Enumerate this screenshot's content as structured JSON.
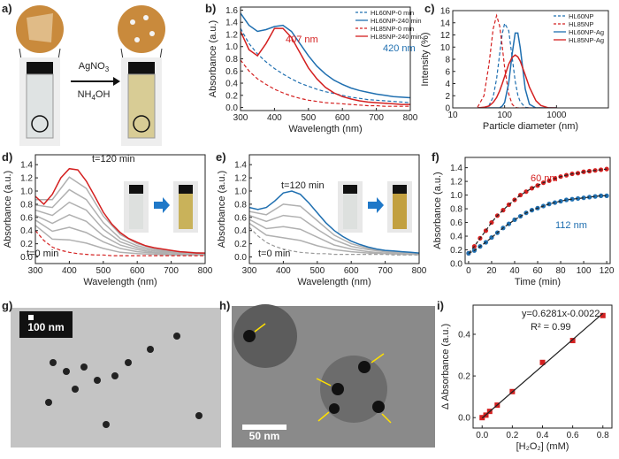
{
  "panel_labels": [
    "a)",
    "b)",
    "c)",
    "d)",
    "e)",
    "f)",
    "g)",
    "h)",
    "i)"
  ],
  "panel_a": {
    "reagents": [
      {
        "text": "AgNO",
        "sub": "3"
      },
      {
        "text": "NH",
        "sub": "4",
        "tail": "OH"
      }
    ]
  },
  "panel_g": {
    "scale_bar": "100 nm"
  },
  "panel_h": {
    "scale_bar": "50 nm"
  },
  "chart_data": [
    {
      "type": "line",
      "ylabel": "Absorbance (a.u.)",
      "xlabel": "Wavelength (nm)",
      "xlim": [
        300,
        800
      ],
      "ylim": [
        -0.05,
        1.65
      ],
      "xticks": [
        300,
        400,
        500,
        600,
        700,
        800
      ],
      "yticks": [
        {
          "value": 0,
          "label": "0.0"
        },
        0.2,
        0.4,
        0.6,
        0.8,
        {
          "value": 1,
          "label": "1.0"
        },
        1.2,
        1.4,
        1.6
      ],
      "legend": "upper right",
      "x": [
        300,
        325,
        350,
        375,
        400,
        425,
        450,
        475,
        500,
        525,
        550,
        575,
        600,
        625,
        650,
        675,
        700,
        725,
        750,
        775,
        800
      ],
      "series": [
        {
          "name": "HL60NP-0 min",
          "color": "#1f6fb0",
          "style": "dashed",
          "values": [
            1.3,
            1.05,
            0.88,
            0.75,
            0.64,
            0.55,
            0.47,
            0.4,
            0.35,
            0.3,
            0.26,
            0.23,
            0.2,
            0.17,
            0.15,
            0.13,
            0.12,
            0.11,
            0.1,
            0.09,
            0.08
          ]
        },
        {
          "name": "HL60NP-240 min",
          "color": "#1f6fb0",
          "style": "solid",
          "values": [
            1.55,
            1.35,
            1.25,
            1.28,
            1.33,
            1.35,
            1.25,
            1.05,
            0.85,
            0.68,
            0.55,
            0.45,
            0.38,
            0.32,
            0.28,
            0.25,
            0.22,
            0.2,
            0.18,
            0.17,
            0.16
          ]
        },
        {
          "name": "HL85NP-0 min",
          "color": "#d42020",
          "style": "dashed",
          "values": [
            0.78,
            0.6,
            0.47,
            0.38,
            0.3,
            0.24,
            0.19,
            0.15,
            0.12,
            0.1,
            0.08,
            0.07,
            0.06,
            0.05,
            0.04,
            0.03,
            0.03,
            0.02,
            0.02,
            0.02,
            0.02
          ]
        },
        {
          "name": "HL85NP-240 min",
          "color": "#d42020",
          "style": "solid",
          "values": [
            1.25,
            0.95,
            0.85,
            1.05,
            1.3,
            1.3,
            1.15,
            0.9,
            0.65,
            0.47,
            0.33,
            0.24,
            0.18,
            0.14,
            0.11,
            0.09,
            0.08,
            0.07,
            0.06,
            0.05,
            0.05
          ]
        }
      ],
      "annotations": [
        {
          "text": "407 nm",
          "color": "#d42020"
        },
        {
          "text": "420 nm",
          "color": "#1f6fb0"
        }
      ]
    },
    {
      "type": "line",
      "ylabel": "Intensity (%)",
      "xlabel": "Particle diameter (nm)",
      "xscale": "log",
      "xlim": [
        10,
        10000
      ],
      "ylim": [
        0,
        16
      ],
      "xticks": [
        10,
        100,
        1000
      ],
      "yticks": [
        0,
        2,
        4,
        6,
        8,
        10,
        12,
        14,
        16
      ],
      "legend": "upper right",
      "x": [
        30,
        40,
        50,
        60,
        70,
        80,
        90,
        100,
        120,
        140,
        160,
        180,
        200,
        250,
        300,
        400,
        500,
        700,
        1000
      ],
      "series": [
        {
          "name": "HL60NP",
          "color": "#1f6fb0",
          "style": "dashed",
          "values": [
            0,
            0,
            0.4,
            1.8,
            4.8,
            8.8,
            12.2,
            13.9,
            12.7,
            8.3,
            4.4,
            2.1,
            1.0,
            0.1,
            0,
            0,
            0,
            0,
            0
          ]
        },
        {
          "name": "HL85NP",
          "color": "#d42020",
          "style": "dashed",
          "values": [
            0.1,
            2.0,
            7.2,
            13.0,
            15.2,
            13.5,
            10.1,
            6.6,
            2.3,
            0.6,
            0.1,
            0,
            0,
            0,
            0,
            0,
            0,
            0,
            0
          ]
        },
        {
          "name": "HL60NP-Ag",
          "color": "#1f6fb0",
          "style": "solid",
          "values": [
            0,
            0,
            0,
            0,
            0,
            0,
            0.3,
            0.9,
            4.1,
            8.9,
            12.3,
            12.3,
            9.9,
            3.1,
            0.6,
            0,
            0,
            0,
            0
          ]
        },
        {
          "name": "HL85NP-Ag",
          "color": "#d42020",
          "style": "solid",
          "values": [
            0,
            0.1,
            0.3,
            0.9,
            1.7,
            2.8,
            4.0,
            5.2,
            7.2,
            8.3,
            8.7,
            8.4,
            7.7,
            5.4,
            3.4,
            1.2,
            0.4,
            0,
            0
          ]
        }
      ]
    },
    {
      "type": "line",
      "ylabel": "Absorbance (a.u.)",
      "xlabel": "Wavelength (nm)",
      "xlim": [
        300,
        800
      ],
      "ylim": [
        -0.1,
        1.55
      ],
      "xticks": [
        300,
        400,
        500,
        600,
        700,
        800
      ],
      "yticks": [
        {
          "value": 0,
          "label": "0.0"
        },
        0.2,
        0.4,
        0.6,
        0.8,
        {
          "value": 1,
          "label": "1.0"
        },
        1.2,
        1.4
      ],
      "x": [
        300,
        325,
        350,
        375,
        400,
        425,
        450,
        475,
        500,
        525,
        550,
        575,
        600,
        625,
        650,
        675,
        700,
        725,
        750,
        775,
        800
      ],
      "series": [
        {
          "color": "#b0b0b0",
          "style": "solid",
          "x": [
            300,
            350,
            400,
            450,
            500,
            550,
            600,
            650,
            700,
            750,
            800
          ],
          "values": [
            0.48,
            0.27,
            0.26,
            0.21,
            0.13,
            0.07,
            0.05,
            0.04,
            0.03,
            0.03,
            0.03
          ]
        },
        {
          "color": "#b0b0b0",
          "style": "solid",
          "x": [
            300,
            350,
            400,
            450,
            500,
            550,
            600,
            650,
            700,
            750,
            800
          ],
          "values": [
            0.56,
            0.39,
            0.45,
            0.37,
            0.23,
            0.13,
            0.08,
            0.06,
            0.04,
            0.04,
            0.03
          ]
        },
        {
          "color": "#b0b0b0",
          "style": "solid",
          "x": [
            300,
            350,
            400,
            450,
            500,
            550,
            600,
            650,
            700,
            750,
            800
          ],
          "values": [
            0.63,
            0.51,
            0.64,
            0.54,
            0.32,
            0.18,
            0.11,
            0.07,
            0.06,
            0.04,
            0.04
          ]
        },
        {
          "color": "#b0b0b0",
          "style": "solid",
          "x": [
            300,
            350,
            400,
            450,
            500,
            550,
            600,
            650,
            700,
            750,
            800
          ],
          "values": [
            0.71,
            0.63,
            0.83,
            0.71,
            0.42,
            0.23,
            0.14,
            0.09,
            0.07,
            0.05,
            0.04
          ]
        },
        {
          "color": "#b0b0b0",
          "style": "solid",
          "x": [
            300,
            350,
            400,
            450,
            500,
            550,
            600,
            650,
            700,
            750,
            800
          ],
          "values": [
            0.79,
            0.75,
            1.02,
            0.87,
            0.52,
            0.28,
            0.17,
            0.11,
            0.08,
            0.06,
            0.05
          ]
        },
        {
          "color": "#b0b0b0",
          "style": "solid",
          "x": [
            300,
            350,
            400,
            450,
            500,
            550,
            600,
            650,
            700,
            750,
            800
          ],
          "values": [
            0.87,
            0.87,
            1.21,
            1.04,
            0.62,
            0.34,
            0.2,
            0.13,
            0.09,
            0.07,
            0.06
          ]
        },
        {
          "color": "#d42020",
          "style": "dashed",
          "values": [
            0.4,
            0.25,
            0.15,
            0.1,
            0.07,
            0.05,
            0.04,
            0.03,
            0.03,
            0.02,
            0.02,
            0.02,
            0.02,
            0.02,
            0.02,
            0.02,
            0.02,
            0.02,
            0.02,
            0.02,
            0.02
          ]
        },
        {
          "color": "#d42020",
          "style": "solid",
          "values": [
            0.92,
            0.8,
            0.95,
            1.2,
            1.34,
            1.32,
            1.15,
            0.92,
            0.68,
            0.5,
            0.37,
            0.28,
            0.22,
            0.17,
            0.14,
            0.12,
            0.1,
            0.08,
            0.07,
            0.06,
            0.06
          ]
        }
      ],
      "annotations": [
        {
          "text": "t=120 min",
          "color": "#222222"
        },
        {
          "text": "t=0 min",
          "color": "#222222"
        }
      ]
    },
    {
      "type": "line",
      "ylabel": "Absorbance (a.u.)",
      "xlabel": "Wavelength (nm)",
      "xlim": [
        300,
        800
      ],
      "ylim": [
        -0.1,
        1.55
      ],
      "xticks": [
        300,
        400,
        500,
        600,
        700,
        800
      ],
      "yticks": [
        {
          "value": 0,
          "label": "0.0"
        },
        0.2,
        0.4,
        0.6,
        0.8,
        {
          "value": 1,
          "label": "1.0"
        },
        1.2,
        1.4
      ],
      "x": [
        300,
        325,
        350,
        375,
        400,
        425,
        450,
        475,
        500,
        525,
        550,
        575,
        600,
        625,
        650,
        675,
        700,
        725,
        750,
        775,
        800
      ],
      "series": [
        {
          "color": "#b0b0b0",
          "style": "solid",
          "x": [
            300,
            350,
            400,
            450,
            500,
            550,
            600,
            650,
            700,
            750,
            800
          ],
          "values": [
            0.51,
            0.33,
            0.29,
            0.25,
            0.17,
            0.11,
            0.08,
            0.06,
            0.05,
            0.04,
            0.04
          ]
        },
        {
          "color": "#b0b0b0",
          "style": "solid",
          "x": [
            300,
            350,
            400,
            450,
            500,
            550,
            600,
            650,
            700,
            750,
            800
          ],
          "values": [
            0.57,
            0.43,
            0.46,
            0.42,
            0.3,
            0.18,
            0.12,
            0.08,
            0.06,
            0.05,
            0.04
          ]
        },
        {
          "color": "#b0b0b0",
          "style": "solid",
          "x": [
            300,
            350,
            400,
            450,
            500,
            550,
            600,
            650,
            700,
            750,
            800
          ],
          "values": [
            0.63,
            0.54,
            0.63,
            0.6,
            0.42,
            0.26,
            0.16,
            0.11,
            0.08,
            0.06,
            0.05
          ]
        },
        {
          "color": "#b0b0b0",
          "style": "solid",
          "x": [
            300,
            350,
            400,
            450,
            500,
            550,
            600,
            650,
            700,
            750,
            800
          ],
          "values": [
            0.69,
            0.64,
            0.8,
            0.77,
            0.55,
            0.33,
            0.2,
            0.13,
            0.09,
            0.07,
            0.05
          ]
        },
        {
          "color": "#9a9a9a",
          "style": "dashed",
          "values": [
            0.45,
            0.32,
            0.22,
            0.16,
            0.12,
            0.09,
            0.07,
            0.06,
            0.05,
            0.05,
            0.04,
            0.04,
            0.04,
            0.04,
            0.04,
            0.04,
            0.04,
            0.03,
            0.03,
            0.03,
            0.03
          ]
        },
        {
          "color": "#1f6fb0",
          "style": "solid",
          "values": [
            0.75,
            0.72,
            0.75,
            0.85,
            0.97,
            1.0,
            0.95,
            0.82,
            0.67,
            0.52,
            0.4,
            0.31,
            0.24,
            0.19,
            0.15,
            0.12,
            0.1,
            0.09,
            0.08,
            0.07,
            0.06
          ]
        }
      ],
      "annotations": [
        {
          "text": "t=120 min",
          "color": "#222222"
        },
        {
          "text": "t=0 min",
          "color": "#222222"
        }
      ]
    },
    {
      "type": "scatter",
      "ylabel": "Absorbance (a.u.)",
      "xlabel": "Time (min)",
      "xlim": [
        -3,
        123
      ],
      "ylim": [
        0,
        1.55
      ],
      "xticks": [
        0,
        20,
        40,
        60,
        80,
        100,
        120
      ],
      "yticks": [
        {
          "value": 0,
          "label": "0.0"
        },
        0.2,
        0.4,
        0.6,
        0.8,
        {
          "value": 1,
          "label": "1.0"
        },
        1.2,
        1.4
      ],
      "x": [
        0,
        5,
        10,
        15,
        20,
        25,
        30,
        35,
        40,
        45,
        50,
        55,
        60,
        65,
        70,
        75,
        80,
        85,
        90,
        95,
        100,
        105,
        110,
        115,
        120
      ],
      "series": [
        {
          "name": "60 nm",
          "color": "#d42020",
          "marker": "circle",
          "line_color": "#222222",
          "line_style": "dashed",
          "values": [
            0.15,
            0.25,
            0.37,
            0.48,
            0.6,
            0.7,
            0.78,
            0.86,
            0.93,
            1.0,
            1.05,
            1.1,
            1.14,
            1.18,
            1.21,
            1.24,
            1.27,
            1.29,
            1.31,
            1.32,
            1.34,
            1.35,
            1.36,
            1.37,
            1.38
          ]
        },
        {
          "name": "112 nm",
          "color": "#1f6fb0",
          "marker": "circle",
          "line_color": "#222222",
          "line_style": "dashed",
          "values": [
            0.15,
            0.19,
            0.25,
            0.31,
            0.38,
            0.45,
            0.52,
            0.58,
            0.64,
            0.69,
            0.74,
            0.78,
            0.81,
            0.84,
            0.87,
            0.89,
            0.91,
            0.93,
            0.94,
            0.95,
            0.96,
            0.97,
            0.98,
            0.99,
            0.99
          ]
        }
      ]
    },
    {
      "type": "scatter",
      "ylabel": "Δ Absorbance (a.u.)",
      "xlabel": "[H₂O₂] (mM)",
      "xlim": [
        -0.06,
        0.86
      ],
      "ylim": [
        -0.05,
        0.54
      ],
      "xticks": [
        {
          "value": 0,
          "label": "0.0"
        },
        0.2,
        0.4,
        0.6,
        0.8
      ],
      "yticks": [
        {
          "value": 0,
          "label": "0.0"
        },
        0.2,
        0.4
      ],
      "x": [
        0,
        0.025,
        0.05,
        0.1,
        0.2,
        0.4,
        0.6,
        0.8
      ],
      "series": [
        {
          "color": "#d42020",
          "marker": "square",
          "values": [
            0,
            0.012,
            0.03,
            0.06,
            0.125,
            0.265,
            0.37,
            0.49
          ]
        }
      ],
      "fit": {
        "slope": 0.6281,
        "intercept": -0.0022,
        "color": "#222222"
      },
      "annotations": [
        {
          "text": "y=0.6281x-0.0022",
          "color": "#222222"
        },
        {
          "text": "R² = 0.99",
          "color": "#222222"
        }
      ]
    }
  ]
}
